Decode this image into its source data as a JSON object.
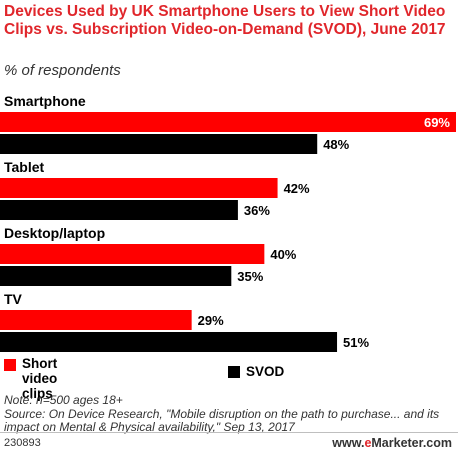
{
  "title": "Devices Used by UK Smartphone Users to View Short Video Clips vs. Subscription Video-on-Demand (SVOD), June 2017",
  "subtitle": "% of respondents",
  "chart_data": {
    "type": "bar",
    "orientation": "horizontal",
    "categories": [
      "Smartphone",
      "Tablet",
      "Desktop/laptop",
      "TV"
    ],
    "series": [
      {
        "name": "Short video clips",
        "values": [
          69,
          42,
          40,
          29
        ],
        "labels": [
          "69%",
          "42%",
          "40%",
          "29%"
        ],
        "color": "#ff0000"
      },
      {
        "name": "SVOD",
        "values": [
          48,
          36,
          35,
          51
        ],
        "labels": [
          "48%",
          "36%",
          "35%",
          "51%"
        ],
        "color": "#000000"
      }
    ],
    "xlim": [
      0,
      69
    ],
    "grid": false,
    "legend": "bottom"
  },
  "legend": {
    "short_video": "Short video clips",
    "svod": "SVOD"
  },
  "notes": {
    "note": "Note: n=500 ages 18+",
    "source": "Source: On Device Research, \"Mobile disruption on the path to purchase... and its impact on Mental & Physical availability,\" Sep 13, 2017"
  },
  "footer": {
    "id": "230893",
    "brand_prefix": "www.",
    "brand_e": "e",
    "brand_suffix": "Marketer.com"
  }
}
